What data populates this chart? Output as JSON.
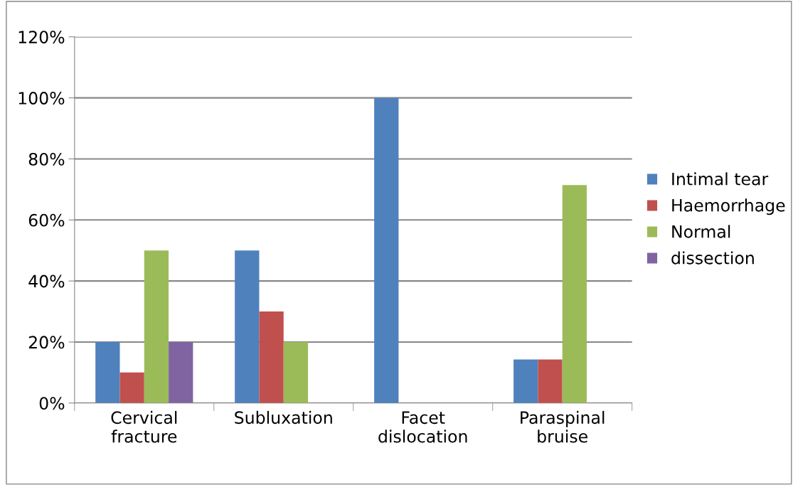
{
  "chart_data": {
    "type": "bar",
    "categories": [
      "Cervical\nfracture",
      "Subluxation",
      "Facet\ndislocation",
      "Paraspinal\nbruise"
    ],
    "series": [
      {
        "name": "Intimal tear",
        "color": "#4f81bd",
        "values": [
          20,
          50,
          100,
          14.3
        ]
      },
      {
        "name": "Haemorrhage",
        "color": "#c0504d",
        "values": [
          10,
          30,
          0,
          14.3
        ]
      },
      {
        "name": "Normal",
        "color": "#9bbb59",
        "values": [
          50,
          20,
          0,
          71.4
        ]
      },
      {
        "name": "dissection",
        "color": "#8064a2",
        "values": [
          20,
          0,
          0,
          0
        ]
      }
    ],
    "ylim": [
      0,
      120
    ],
    "yticks": [
      {
        "value": 0,
        "label": "0%"
      },
      {
        "value": 20,
        "label": "20%"
      },
      {
        "value": 40,
        "label": "40%"
      },
      {
        "value": 60,
        "label": "60%"
      },
      {
        "value": 80,
        "label": "80%"
      },
      {
        "value": 100,
        "label": "100%"
      },
      {
        "value": 120,
        "label": "120%"
      }
    ],
    "grid": "y",
    "legend": "right"
  }
}
